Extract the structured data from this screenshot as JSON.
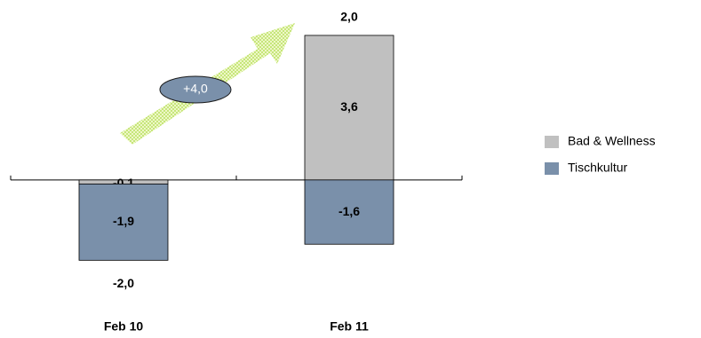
{
  "chart_data": {
    "type": "stacked_bar",
    "categories": [
      "Feb 10",
      "Feb 11"
    ],
    "series": [
      {
        "name": "Bad & Wellness",
        "color": "#c0c0c0",
        "values": [
          -0.1,
          3.6
        ],
        "value_labels": [
          "-0,1",
          "3,6"
        ]
      },
      {
        "name": "Tischkultur",
        "color": "#7a90aa",
        "values": [
          -1.9,
          -1.6
        ],
        "value_labels": [
          "-1,9",
          "-1,6"
        ]
      }
    ],
    "totals": [
      -2.0,
      2.0
    ],
    "total_labels": [
      "-2,0",
      "2,0"
    ],
    "annotation": "+4,0",
    "ylim": [
      -2.5,
      4.0
    ],
    "legend": "right"
  }
}
